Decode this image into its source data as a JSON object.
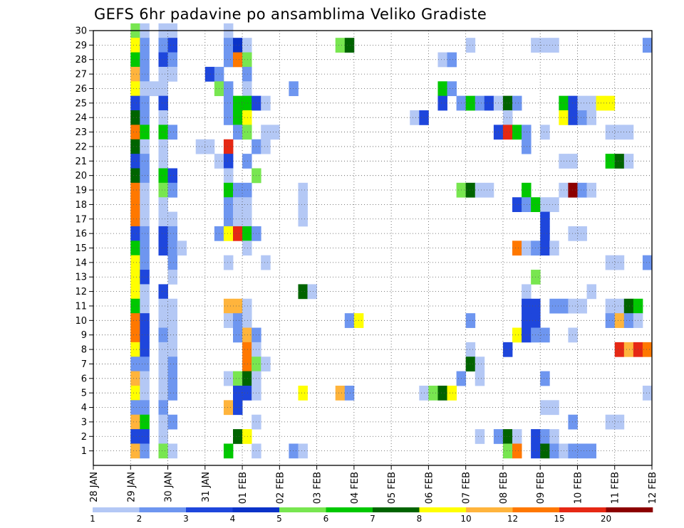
{
  "chart_data": {
    "type": "heatmap",
    "title": "GEFS 6hr padavine po ansamblima Veliko Gradiste",
    "xlabel": "",
    "ylabel": "",
    "x_ticks": [
      "28 JAN",
      "29 JAN",
      "30 JAN",
      "31 JAN",
      "01 FEB",
      "02 FEB",
      "03 FEB",
      "04 FEB",
      "05 FEB",
      "06 FEB",
      "07 FEB",
      "08 FEB",
      "09 FEB",
      "10 FEB",
      "11 FEB",
      "12 FEB"
    ],
    "y_ticks": [
      1,
      2,
      3,
      4,
      5,
      6,
      7,
      8,
      9,
      10,
      11,
      12,
      13,
      14,
      15,
      16,
      17,
      18,
      19,
      20,
      21,
      22,
      23,
      24,
      25,
      26,
      27,
      28,
      29,
      30
    ],
    "y_range": [
      0,
      30
    ],
    "grid": true,
    "time_step_hours": 6,
    "legend": {
      "placement": "bottom",
      "labels": [
        "1",
        "2",
        "3",
        "4",
        "5",
        "6",
        "7",
        "8",
        "10",
        "12",
        "15",
        "20"
      ],
      "colors": [
        "#b4c8f5",
        "#6e96f0",
        "#1e46dc",
        "#0a32c8",
        "#78e650",
        "#00c800",
        "#006400",
        "#ffff00",
        "#ffb43c",
        "#ff7800",
        "#e62814",
        "#8c0000"
      ]
    },
    "cells_format": "[member, day_offset_from_28_JAN, color_index]",
    "cells": [
      [
        30,
        1.0,
        4
      ],
      [
        30,
        1.25,
        0
      ],
      [
        30,
        1.75,
        0
      ],
      [
        30,
        2.0,
        0
      ],
      [
        30,
        3.5,
        0
      ],
      [
        29,
        1.0,
        7
      ],
      [
        29,
        1.25,
        1
      ],
      [
        29,
        1.75,
        1
      ],
      [
        29,
        2.0,
        2
      ],
      [
        29,
        3.5,
        1
      ],
      [
        29,
        3.75,
        3
      ],
      [
        29,
        4.0,
        0
      ],
      [
        29,
        6.5,
        4
      ],
      [
        29,
        6.75,
        6
      ],
      [
        29,
        10.0,
        0
      ],
      [
        29,
        11.75,
        0
      ],
      [
        29,
        12.0,
        0
      ],
      [
        29,
        12.25,
        0
      ],
      [
        29,
        14.75,
        1
      ],
      [
        28,
        1.0,
        5
      ],
      [
        28,
        1.25,
        1
      ],
      [
        28,
        1.75,
        2
      ],
      [
        28,
        2.0,
        1
      ],
      [
        28,
        3.5,
        1
      ],
      [
        28,
        3.75,
        9
      ],
      [
        28,
        4.0,
        4
      ],
      [
        28,
        9.25,
        0
      ],
      [
        28,
        9.5,
        1
      ],
      [
        27,
        1.0,
        8
      ],
      [
        27,
        1.25,
        1
      ],
      [
        27,
        1.75,
        0
      ],
      [
        27,
        2.0,
        0
      ],
      [
        27,
        3.0,
        2
      ],
      [
        27,
        3.25,
        1
      ],
      [
        27,
        4.0,
        1
      ],
      [
        26,
        1.0,
        7
      ],
      [
        26,
        1.25,
        0
      ],
      [
        26,
        1.5,
        0
      ],
      [
        26,
        1.75,
        0
      ],
      [
        26,
        3.25,
        4
      ],
      [
        26,
        3.5,
        1
      ],
      [
        26,
        4.0,
        0
      ],
      [
        26,
        5.25,
        1
      ],
      [
        26,
        9.25,
        5
      ],
      [
        26,
        9.5,
        1
      ],
      [
        25,
        1.0,
        2
      ],
      [
        25,
        1.25,
        1
      ],
      [
        25,
        1.75,
        2
      ],
      [
        25,
        3.5,
        1
      ],
      [
        25,
        3.75,
        5
      ],
      [
        25,
        4.0,
        5
      ],
      [
        25,
        4.25,
        2
      ],
      [
        25,
        4.5,
        0
      ],
      [
        25,
        9.25,
        2
      ],
      [
        25,
        9.75,
        1
      ],
      [
        25,
        10.0,
        5
      ],
      [
        25,
        10.25,
        1
      ],
      [
        25,
        10.5,
        2
      ],
      [
        25,
        10.75,
        0
      ],
      [
        25,
        11.0,
        6
      ],
      [
        25,
        11.25,
        1
      ],
      [
        25,
        12.5,
        5
      ],
      [
        25,
        12.75,
        2
      ],
      [
        25,
        13.0,
        0
      ],
      [
        25,
        13.25,
        0
      ],
      [
        25,
        13.5,
        7
      ],
      [
        25,
        13.75,
        7
      ],
      [
        24,
        1.0,
        6
      ],
      [
        24,
        1.25,
        1
      ],
      [
        24,
        1.75,
        0
      ],
      [
        24,
        3.5,
        1
      ],
      [
        24,
        3.75,
        5
      ],
      [
        24,
        4.0,
        7
      ],
      [
        24,
        8.5,
        0
      ],
      [
        24,
        8.75,
        2
      ],
      [
        24,
        11.0,
        0
      ],
      [
        24,
        12.5,
        7
      ],
      [
        24,
        12.75,
        2
      ],
      [
        24,
        13.0,
        1
      ],
      [
        24,
        13.25,
        0
      ],
      [
        23,
        1.0,
        9
      ],
      [
        23,
        1.25,
        5
      ],
      [
        23,
        1.75,
        5
      ],
      [
        23,
        2.0,
        1
      ],
      [
        23,
        3.75,
        1
      ],
      [
        23,
        4.0,
        4
      ],
      [
        23,
        4.5,
        0
      ],
      [
        23,
        4.75,
        0
      ],
      [
        23,
        10.75,
        2
      ],
      [
        23,
        11.0,
        10
      ],
      [
        23,
        11.25,
        5
      ],
      [
        23,
        11.5,
        1
      ],
      [
        23,
        12.0,
        0
      ],
      [
        23,
        13.75,
        0
      ],
      [
        23,
        14.0,
        0
      ],
      [
        23,
        14.25,
        0
      ],
      [
        22,
        1.0,
        6
      ],
      [
        22,
        1.25,
        0
      ],
      [
        22,
        1.75,
        0
      ],
      [
        22,
        2.75,
        0
      ],
      [
        22,
        3.0,
        0
      ],
      [
        22,
        3.5,
        10
      ],
      [
        22,
        4.25,
        1
      ],
      [
        22,
        4.5,
        0
      ],
      [
        22,
        11.5,
        1
      ],
      [
        21,
        1.0,
        2
      ],
      [
        21,
        1.25,
        1
      ],
      [
        21,
        1.75,
        0
      ],
      [
        21,
        3.25,
        0
      ],
      [
        21,
        3.5,
        2
      ],
      [
        21,
        4.0,
        1
      ],
      [
        21,
        12.5,
        0
      ],
      [
        21,
        12.75,
        0
      ],
      [
        21,
        13.75,
        5
      ],
      [
        21,
        14.0,
        6
      ],
      [
        21,
        14.25,
        0
      ],
      [
        20,
        1.0,
        6
      ],
      [
        20,
        1.25,
        1
      ],
      [
        20,
        1.75,
        5
      ],
      [
        20,
        2.0,
        2
      ],
      [
        20,
        3.5,
        0
      ],
      [
        20,
        4.25,
        4
      ],
      [
        19,
        1.0,
        9
      ],
      [
        19,
        1.25,
        0
      ],
      [
        19,
        1.75,
        4
      ],
      [
        19,
        2.0,
        1
      ],
      [
        19,
        3.5,
        5
      ],
      [
        19,
        3.75,
        1
      ],
      [
        19,
        4.0,
        1
      ],
      [
        19,
        5.5,
        0
      ],
      [
        19,
        9.75,
        4
      ],
      [
        19,
        10.0,
        6
      ],
      [
        19,
        10.25,
        0
      ],
      [
        19,
        10.5,
        0
      ],
      [
        19,
        11.5,
        5
      ],
      [
        19,
        12.5,
        0
      ],
      [
        19,
        12.75,
        11
      ],
      [
        19,
        13.0,
        1
      ],
      [
        19,
        13.25,
        0
      ],
      [
        18,
        1.0,
        9
      ],
      [
        18,
        1.25,
        0
      ],
      [
        18,
        1.75,
        0
      ],
      [
        18,
        3.5,
        1
      ],
      [
        18,
        3.75,
        0
      ],
      [
        18,
        4.0,
        0
      ],
      [
        18,
        5.5,
        0
      ],
      [
        18,
        11.25,
        2
      ],
      [
        18,
        11.5,
        1
      ],
      [
        18,
        11.75,
        5
      ],
      [
        18,
        12.0,
        0
      ],
      [
        18,
        12.25,
        0
      ],
      [
        17,
        1.0,
        9
      ],
      [
        17,
        1.25,
        0
      ],
      [
        17,
        1.75,
        0
      ],
      [
        17,
        2.0,
        0
      ],
      [
        17,
        3.5,
        1
      ],
      [
        17,
        3.75,
        0
      ],
      [
        17,
        4.0,
        0
      ],
      [
        17,
        5.5,
        0
      ],
      [
        17,
        12.0,
        2
      ],
      [
        16,
        1.0,
        2
      ],
      [
        16,
        1.25,
        1
      ],
      [
        16,
        1.75,
        2
      ],
      [
        16,
        2.0,
        1
      ],
      [
        16,
        3.25,
        1
      ],
      [
        16,
        3.5,
        7
      ],
      [
        16,
        3.75,
        10
      ],
      [
        16,
        4.0,
        5
      ],
      [
        16,
        4.25,
        1
      ],
      [
        16,
        12.0,
        2
      ],
      [
        16,
        12.75,
        0
      ],
      [
        16,
        13.0,
        0
      ],
      [
        15,
        1.0,
        5
      ],
      [
        15,
        1.25,
        1
      ],
      [
        15,
        1.75,
        2
      ],
      [
        15,
        2.0,
        1
      ],
      [
        15,
        2.25,
        0
      ],
      [
        15,
        4.0,
        0
      ],
      [
        15,
        11.25,
        9
      ],
      [
        15,
        11.5,
        0
      ],
      [
        15,
        11.75,
        1
      ],
      [
        15,
        12.0,
        2
      ],
      [
        15,
        12.25,
        0
      ],
      [
        14,
        1.0,
        7
      ],
      [
        14,
        1.25,
        1
      ],
      [
        14,
        2.0,
        1
      ],
      [
        14,
        3.5,
        0
      ],
      [
        14,
        4.5,
        0
      ],
      [
        14,
        13.75,
        0
      ],
      [
        14,
        14.0,
        0
      ],
      [
        14,
        14.75,
        1
      ],
      [
        13,
        1.0,
        7
      ],
      [
        13,
        1.25,
        2
      ],
      [
        13,
        2.0,
        0
      ],
      [
        13,
        11.75,
        4
      ],
      [
        12,
        1.0,
        7
      ],
      [
        12,
        1.25,
        0
      ],
      [
        12,
        1.75,
        2
      ],
      [
        12,
        5.5,
        6
      ],
      [
        12,
        5.75,
        0
      ],
      [
        12,
        11.5,
        0
      ],
      [
        12,
        13.25,
        0
      ],
      [
        11,
        1.0,
        5
      ],
      [
        11,
        1.25,
        0
      ],
      [
        11,
        1.75,
        0
      ],
      [
        11,
        2.0,
        0
      ],
      [
        11,
        3.5,
        8
      ],
      [
        11,
        3.75,
        8
      ],
      [
        11,
        4.0,
        0
      ],
      [
        11,
        11.5,
        2
      ],
      [
        11,
        11.75,
        2
      ],
      [
        11,
        12.25,
        1
      ],
      [
        11,
        12.5,
        1
      ],
      [
        11,
        12.75,
        0
      ],
      [
        11,
        13.0,
        0
      ],
      [
        11,
        13.75,
        0
      ],
      [
        11,
        14.0,
        0
      ],
      [
        11,
        14.25,
        6
      ],
      [
        11,
        14.5,
        5
      ],
      [
        10,
        1.0,
        9
      ],
      [
        10,
        1.25,
        2
      ],
      [
        10,
        1.75,
        0
      ],
      [
        10,
        2.0,
        0
      ],
      [
        10,
        3.5,
        0
      ],
      [
        10,
        3.75,
        1
      ],
      [
        10,
        4.0,
        0
      ],
      [
        10,
        6.75,
        1
      ],
      [
        10,
        7.0,
        7
      ],
      [
        10,
        10.0,
        1
      ],
      [
        10,
        11.5,
        2
      ],
      [
        10,
        11.75,
        2
      ],
      [
        10,
        13.75,
        1
      ],
      [
        10,
        14.0,
        8
      ],
      [
        10,
        14.25,
        1
      ],
      [
        10,
        14.5,
        0
      ],
      [
        9,
        1.0,
        9
      ],
      [
        9,
        1.25,
        2
      ],
      [
        9,
        1.75,
        1
      ],
      [
        9,
        2.0,
        0
      ],
      [
        9,
        3.75,
        1
      ],
      [
        9,
        4.0,
        8
      ],
      [
        9,
        4.25,
        1
      ],
      [
        9,
        11.25,
        7
      ],
      [
        9,
        11.5,
        2
      ],
      [
        9,
        11.75,
        1
      ],
      [
        9,
        12.0,
        1
      ],
      [
        9,
        12.75,
        0
      ],
      [
        8,
        1.0,
        7
      ],
      [
        8,
        1.25,
        2
      ],
      [
        8,
        1.75,
        0
      ],
      [
        8,
        2.0,
        0
      ],
      [
        8,
        4.0,
        9
      ],
      [
        8,
        4.25,
        0
      ],
      [
        8,
        10.0,
        0
      ],
      [
        8,
        11.0,
        2
      ],
      [
        8,
        14.0,
        10
      ],
      [
        8,
        14.25,
        8
      ],
      [
        8,
        14.5,
        10
      ],
      [
        8,
        14.75,
        9
      ],
      [
        7,
        1.0,
        1
      ],
      [
        7,
        1.25,
        1
      ],
      [
        7,
        1.75,
        0
      ],
      [
        7,
        2.0,
        1
      ],
      [
        7,
        4.0,
        9
      ],
      [
        7,
        4.25,
        4
      ],
      [
        7,
        4.5,
        0
      ],
      [
        7,
        10.0,
        6
      ],
      [
        7,
        10.25,
        0
      ],
      [
        6,
        1.0,
        8
      ],
      [
        6,
        1.25,
        0
      ],
      [
        6,
        1.75,
        0
      ],
      [
        6,
        2.0,
        1
      ],
      [
        6,
        3.5,
        0
      ],
      [
        6,
        3.75,
        4
      ],
      [
        6,
        4.0,
        6
      ],
      [
        6,
        4.25,
        0
      ],
      [
        6,
        9.75,
        1
      ],
      [
        6,
        10.25,
        0
      ],
      [
        6,
        12.0,
        1
      ],
      [
        5,
        1.0,
        7
      ],
      [
        5,
        1.25,
        0
      ],
      [
        5,
        1.75,
        0
      ],
      [
        5,
        2.0,
        1
      ],
      [
        5,
        3.75,
        2
      ],
      [
        5,
        4.0,
        2
      ],
      [
        5,
        4.25,
        0
      ],
      [
        5,
        5.5,
        7
      ],
      [
        5,
        6.5,
        8
      ],
      [
        5,
        6.75,
        1
      ],
      [
        5,
        8.75,
        0
      ],
      [
        5,
        9.0,
        4
      ],
      [
        5,
        9.25,
        6
      ],
      [
        5,
        9.5,
        7
      ],
      [
        5,
        14.75,
        0
      ],
      [
        4,
        1.0,
        1
      ],
      [
        4,
        1.25,
        1
      ],
      [
        4,
        1.75,
        1
      ],
      [
        4,
        3.5,
        8
      ],
      [
        4,
        3.75,
        2
      ],
      [
        4,
        12.0,
        0
      ],
      [
        4,
        12.25,
        0
      ],
      [
        3,
        1.0,
        8
      ],
      [
        3,
        1.25,
        5
      ],
      [
        3,
        1.75,
        0
      ],
      [
        3,
        2.0,
        1
      ],
      [
        3,
        4.25,
        0
      ],
      [
        3,
        12.75,
        1
      ],
      [
        3,
        13.75,
        0
      ],
      [
        3,
        14.0,
        0
      ],
      [
        2,
        1.0,
        2
      ],
      [
        2,
        1.25,
        2
      ],
      [
        2,
        1.75,
        0
      ],
      [
        2,
        3.75,
        6
      ],
      [
        2,
        4.0,
        7
      ],
      [
        2,
        10.25,
        0
      ],
      [
        2,
        10.75,
        1
      ],
      [
        2,
        11.0,
        6
      ],
      [
        2,
        11.25,
        0
      ],
      [
        2,
        11.75,
        2
      ],
      [
        2,
        12.0,
        1
      ],
      [
        2,
        12.25,
        0
      ],
      [
        1,
        1.0,
        8
      ],
      [
        1,
        1.25,
        1
      ],
      [
        1,
        1.75,
        4
      ],
      [
        1,
        2.0,
        0
      ],
      [
        1,
        3.5,
        5
      ],
      [
        1,
        4.25,
        0
      ],
      [
        1,
        5.25,
        1
      ],
      [
        1,
        5.5,
        0
      ],
      [
        1,
        11.0,
        4
      ],
      [
        1,
        11.25,
        9
      ],
      [
        1,
        11.75,
        2
      ],
      [
        1,
        12.0,
        6
      ],
      [
        1,
        12.25,
        1
      ],
      [
        1,
        12.5,
        0
      ],
      [
        1,
        12.75,
        1
      ],
      [
        1,
        13.0,
        1
      ],
      [
        1,
        13.25,
        1
      ]
    ]
  }
}
